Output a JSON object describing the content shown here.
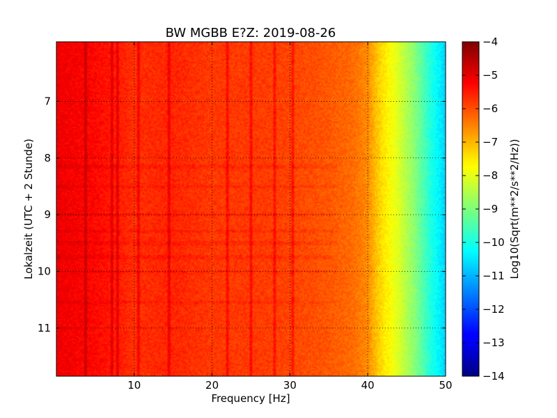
{
  "chart_data": {
    "type": "heatmap",
    "title": "BW MGBB E?Z: 2019-08-26",
    "xlabel": "Frequency [Hz]",
    "ylabel": "Lokalzeit (UTC + 2 Stunde)",
    "xlim": [
      0,
      50
    ],
    "ylim": [
      5.95,
      11.85
    ],
    "y_inverted": true,
    "x_ticks": [
      10,
      20,
      30,
      40,
      50
    ],
    "y_ticks": [
      7,
      8,
      9,
      10,
      11
    ],
    "grid": true,
    "colorscale": "jet",
    "colorbar": {
      "label": "Log10(Sqrt(m**2/s**2/Hz))",
      "min": -14,
      "max": -4,
      "ticks": [
        -4,
        -5,
        -6,
        -7,
        -8,
        -9,
        -10,
        -11,
        -12,
        -13,
        -14
      ]
    },
    "frequency_profile": {
      "x": [
        0,
        5,
        10,
        15,
        20,
        25,
        30,
        35,
        38,
        40,
        41,
        42,
        43,
        44,
        45,
        46,
        47,
        48,
        49,
        50
      ],
      "values": [
        -5.1,
        -5.3,
        -5.7,
        -5.6,
        -5.8,
        -5.8,
        -5.9,
        -6.1,
        -6.3,
        -6.6,
        -7.1,
        -7.5,
        -7.8,
        -8.1,
        -8.5,
        -8.9,
        -9.4,
        -9.9,
        -10.3,
        -10.7
      ]
    },
    "vertical_lines_hz": [
      3.7,
      7.2,
      7.8,
      10.5,
      14.5,
      22,
      25,
      28,
      30.3
    ],
    "horizontal_bands_hour": [
      8.15,
      8.5,
      9.0,
      9.3,
      9.5,
      9.75,
      10.0,
      10.55
    ]
  }
}
